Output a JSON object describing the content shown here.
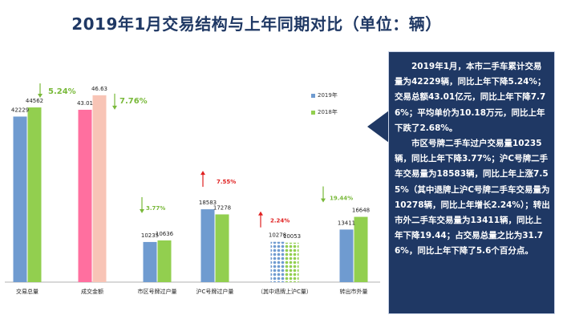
{
  "chart_data": {
    "type": "bar",
    "title": "2019年1月交易结构与上年同期对比（单位：辆）",
    "legend": [
      "2019年",
      "2018年"
    ],
    "categories": [
      "交易总量",
      "成交金额",
      "市区号牌过户量",
      "沪C号牌过户量",
      "（其中退牌上沪C量）",
      "转出市外量"
    ],
    "series": [
      {
        "name": "2019年",
        "values": [
          42229,
          43.01,
          10235,
          18583,
          10278,
          13411
        ],
        "labels": [
          "42229",
          "43.01",
          "10235",
          "18583",
          "10278",
          "13411"
        ]
      },
      {
        "name": "2018年",
        "values": [
          44562,
          46.63,
          10636,
          17278,
          10053,
          16648
        ],
        "labels": [
          "44562",
          "46.63",
          "10636",
          "17278",
          "10053",
          "16648"
        ]
      }
    ],
    "changes": [
      {
        "label": "5.24%",
        "direction": "down"
      },
      {
        "label": "7.76%",
        "direction": "down"
      },
      {
        "label": "3.77%",
        "direction": "down"
      },
      {
        "label": "7.55%",
        "direction": "up"
      },
      {
        "label": "2.24%",
        "direction": "up"
      },
      {
        "label": "19.44%",
        "direction": "down"
      }
    ]
  },
  "colors": {
    "title": "#1f3864",
    "blue": "#6f9bd0",
    "green": "#92cf4f",
    "pink": "#ff6f9f",
    "peach": "#f8c4b6",
    "up_arrow": "#e02020",
    "down_arrow": "#79b93a",
    "callout_bg": "#1f3864"
  },
  "callout": {
    "paragraph1": "2019年1月，本市二手车累计交易量为42229辆，同比上年下降5.24%；交易总额43.01亿元，同比上年下降7.76%；平均单价为10.18万元，同比上年下跌了2.68%。",
    "paragraph2": "市区号牌二手车过户交易量10235辆，同比上年下降3.77%；沪C号牌二手车交易量为18583辆，同比上年上涨7.55%（其中退牌上沪C号牌二手车交易量为10278辆，同比上年增长2.24%）；转出市外二手车交易量为13411辆，同比上年下降19.44；占交易总量之比为31.76%，同比上年下降了5.6个百分点。"
  }
}
